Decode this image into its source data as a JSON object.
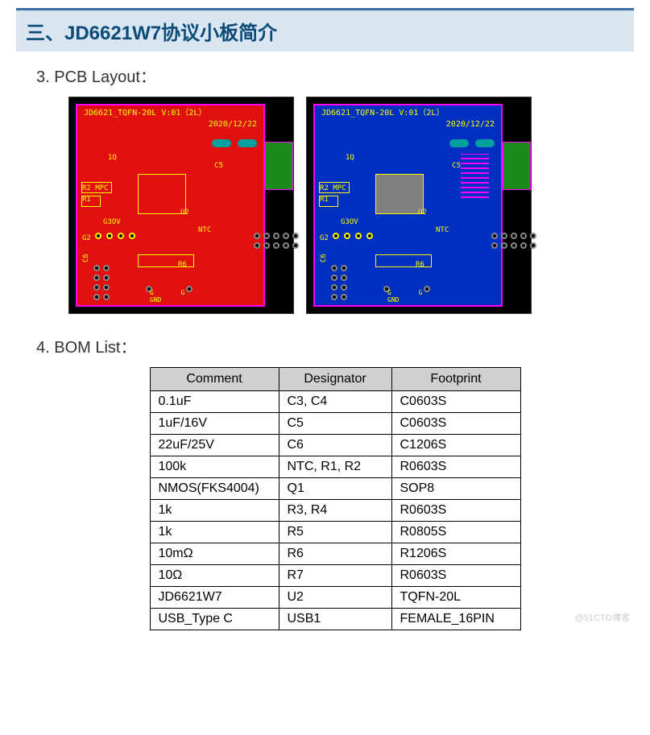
{
  "header": {
    "title": "三、JD6621W7协议小板简介"
  },
  "pcb": {
    "section_title": "3.  PCB  Layout：",
    "board_title": "JD6621_TQFN-20L V:01（2L）",
    "board_date": "2020/12/22",
    "labels": {
      "r2mpc": "R2 MPC",
      "r1": "R1",
      "g3ov": "G3OV",
      "g2": "G2",
      "u2": "U2",
      "ntc": "NTC",
      "c5": "C5",
      "c6": "C6",
      "r6": "R6",
      "q1": "1Q",
      "gnd": "G\nGND"
    },
    "colors": {
      "bg": "#000000",
      "outline": "#ff00ff",
      "red_layer": "#e01010",
      "blue_layer": "#0030c0",
      "silk": "#ffff00",
      "teal": "#00a0a0",
      "green": "#1a8a1a",
      "pad": "#888888",
      "chip_gray": "#808080"
    }
  },
  "bom": {
    "section_title": "4.  BOM  List：",
    "columns": [
      "Comment",
      "Designator",
      "Footprint"
    ],
    "rows": [
      [
        "0.1uF",
        "C3, C4",
        "C0603S"
      ],
      [
        "1uF/16V",
        "C5",
        "C0603S"
      ],
      [
        "22uF/25V",
        "C6",
        "C1206S"
      ],
      [
        "100k",
        "NTC, R1, R2",
        "R0603S"
      ],
      [
        "NMOS(FKS4004)",
        "Q1",
        "SOP8"
      ],
      [
        "1k",
        "R3, R4",
        "R0603S"
      ],
      [
        "1k",
        "R5",
        "R0805S"
      ],
      [
        "10mΩ",
        "R6",
        "R1206S"
      ],
      [
        "10Ω",
        "R7",
        "R0603S"
      ],
      [
        "JD6621W7",
        "U2",
        "TQFN-20L"
      ],
      [
        "USB_Type C",
        "USB1",
        "FEMALE_16PIN"
      ]
    ]
  },
  "watermark": "@51CTO博客"
}
